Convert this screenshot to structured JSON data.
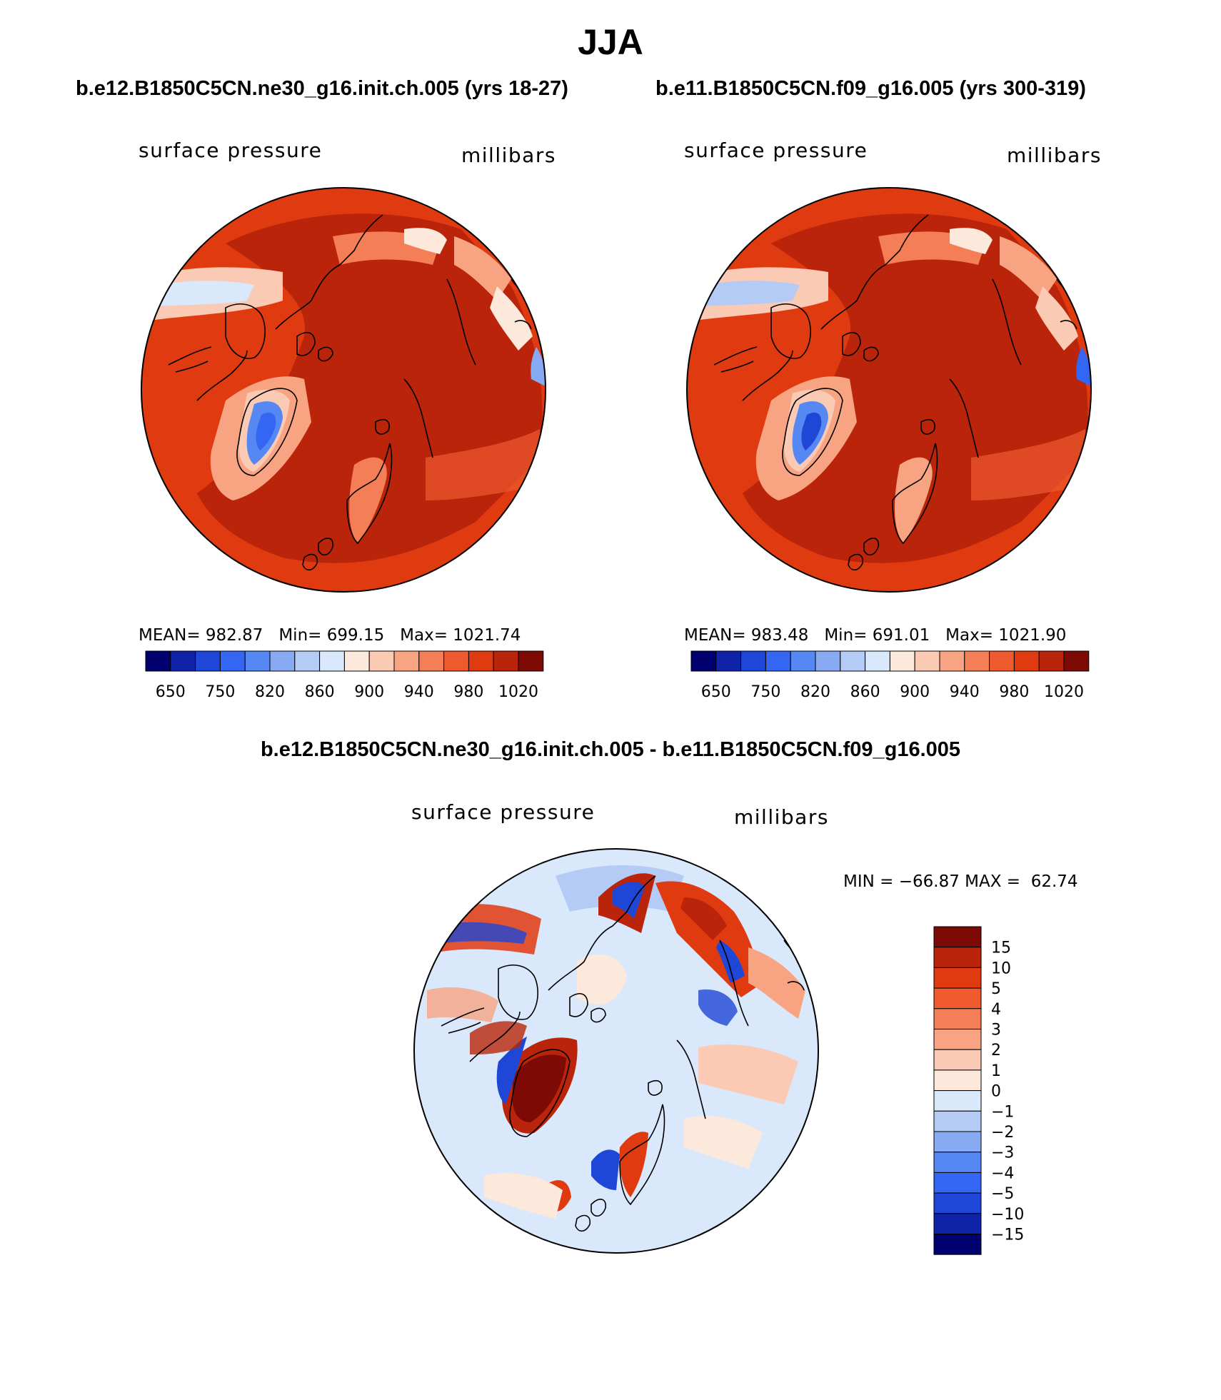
{
  "figure": {
    "title": "JJA",
    "panels": [
      {
        "case_title": "b.e12.B1850C5CN.ne30_g16.init.ch.005 (yrs 18-27)",
        "variable": "surface pressure",
        "units": "millibars",
        "stats": {
          "mean_label": "MEAN=",
          "mean": "982.87",
          "min_label": "Min=",
          "min": "699.15",
          "max_label": "Max=",
          "max": "1021.74"
        }
      },
      {
        "case_title": "b.e11.B1850C5CN.f09_g16.005 (yrs 300-319)",
        "variable": "surface pressure",
        "units": "millibars",
        "stats": {
          "mean_label": "MEAN=",
          "mean": "983.48",
          "min_label": "Min=",
          "min": "691.01",
          "max_label": "Max=",
          "max": "1021.90"
        }
      }
    ],
    "difference": {
      "title": "b.e12.B1850C5CN.ne30_g16.init.ch.005 - b.e11.B1850C5CN.f09_g16.005",
      "variable": "surface pressure",
      "units": "millibars",
      "stats_text": "MIN = −66.87 MAX =  62.74"
    }
  },
  "map_data": {
    "projection": "north polar stereographic",
    "field": "surface pressure (JJA mean)",
    "absolute_colorbar": {
      "tick_labels": [
        "650",
        "750",
        "820",
        "860",
        "900",
        "940",
        "980",
        "1020"
      ],
      "colors": [
        "#00006e",
        "#0f23a8",
        "#1e46d7",
        "#3366f2",
        "#5588f2",
        "#88aaf2",
        "#b4ccf5",
        "#d9e8fb",
        "#fde9db",
        "#fbcab4",
        "#f8a382",
        "#f47e55",
        "#ef5a2f",
        "#e03a10",
        "#b9240a",
        "#7d0a05"
      ]
    },
    "difference_colorbar": {
      "tick_labels": [
        "15",
        "10",
        "5",
        "4",
        "3",
        "2",
        "1",
        "0",
        "−1",
        "−2",
        "−3",
        "−4",
        "−5",
        "−10",
        "−15"
      ],
      "colors": [
        "#7d0a05",
        "#b9240a",
        "#e03a10",
        "#ef5a2f",
        "#f47e55",
        "#f8a382",
        "#fbcab4",
        "#fde9db",
        "#d9e8fb",
        "#b4ccf5",
        "#88aaf2",
        "#5588f2",
        "#3366f2",
        "#1e46d7",
        "#0f23a8",
        "#00006e"
      ]
    }
  }
}
